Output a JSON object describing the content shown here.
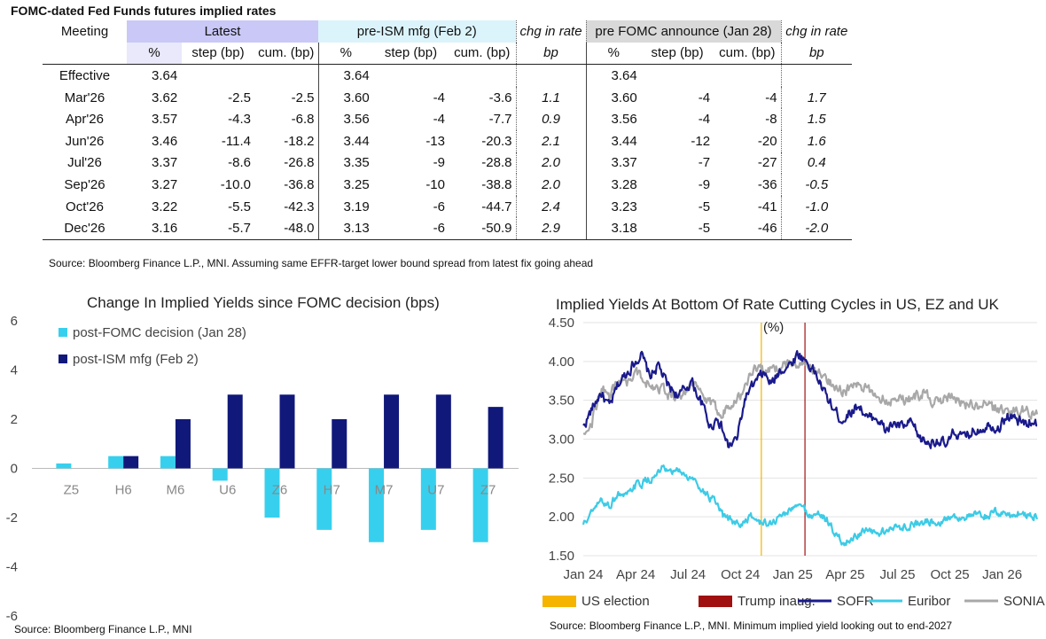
{
  "table": {
    "title": "FOMC-dated Fed Funds futures implied rates",
    "meeting_label": "Meeting",
    "groups": [
      "Latest",
      "pre-ISM mfg (Feb 2)",
      "chg in rate",
      "pre FOMC announce (Jan 28)",
      "chg in rate"
    ],
    "subheaders": [
      "%",
      "step (bp)",
      "cum. (bp)",
      "%",
      "step (bp)",
      "cum. (bp)",
      "bp",
      "%",
      "step (bp)",
      "cum. (bp)",
      "bp"
    ],
    "rows": [
      [
        "Effective",
        "3.64",
        "",
        "",
        "3.64",
        "",
        "",
        "",
        "3.64",
        "",
        "",
        ""
      ],
      [
        "Mar'26",
        "3.62",
        "-2.5",
        "-2.5",
        "3.60",
        "-4",
        "-3.6",
        "1.1",
        "3.60",
        "-4",
        "-4",
        "1.7"
      ],
      [
        "Apr'26",
        "3.57",
        "-4.3",
        "-6.8",
        "3.56",
        "-4",
        "-7.7",
        "0.9",
        "3.56",
        "-4",
        "-8",
        "1.5"
      ],
      [
        "Jun'26",
        "3.46",
        "-11.4",
        "-18.2",
        "3.44",
        "-13",
        "-20.3",
        "2.1",
        "3.44",
        "-12",
        "-20",
        "1.6"
      ],
      [
        "Jul'26",
        "3.37",
        "-8.6",
        "-26.8",
        "3.35",
        "-9",
        "-28.8",
        "2.0",
        "3.37",
        "-7",
        "-27",
        "0.4"
      ],
      [
        "Sep'26",
        "3.27",
        "-10.0",
        "-36.8",
        "3.25",
        "-10",
        "-38.8",
        "2.0",
        "3.28",
        "-9",
        "-36",
        "-0.5"
      ],
      [
        "Oct'26",
        "3.22",
        "-5.5",
        "-42.3",
        "3.19",
        "-6",
        "-44.7",
        "2.4",
        "3.23",
        "-5",
        "-41",
        "-1.0"
      ],
      [
        "Dec'26",
        "3.16",
        "-5.7",
        "-48.0",
        "3.13",
        "-6",
        "-50.9",
        "2.9",
        "3.18",
        "-5",
        "-46",
        "-2.0"
      ]
    ],
    "source": "Source: Bloomberg Finance L.P., MNI. Assuming same  EFFR-target lower bound spread from latest fix going ahead"
  },
  "chart_data": [
    {
      "type": "bar",
      "title": "Change In Implied Yields since FOMC decision (bps)",
      "categories": [
        "Z5",
        "H6",
        "M6",
        "U6",
        "Z6",
        "H7",
        "M7",
        "U7",
        "Z7"
      ],
      "series": [
        {
          "name": "post-FOMC decision (Jan 28)",
          "color": "#36d0ee",
          "values": [
            0.2,
            0.5,
            0.5,
            -0.5,
            -2,
            -2.5,
            -3,
            -2.5,
            -3
          ]
        },
        {
          "name": "post-ISM mfg (Feb 2)",
          "color": "#10187a",
          "values": [
            0,
            0.5,
            2,
            3,
            3,
            2,
            3,
            3,
            2.5
          ]
        }
      ],
      "ylim": [
        -6,
        6
      ],
      "yticks": [
        "6",
        "4",
        "2",
        "0",
        "-2",
        "-4",
        "-6"
      ],
      "source": "Source: Bloomberg Finance L.P., MNI"
    },
    {
      "type": "line",
      "title": "Implied Yields At Bottom Of Rate Cutting Cycles in US, EZ and UK",
      "ylabel": "(%)",
      "ylim": [
        1.5,
        4.5
      ],
      "yticks": [
        "4.50",
        "4.00",
        "3.50",
        "3.00",
        "2.50",
        "2.00",
        "1.50"
      ],
      "xticks": [
        "Jan 24",
        "Apr 24",
        "Jul 24",
        "Oct 24",
        "Jan 25",
        "Apr 25",
        "Jul 25",
        "Oct 25",
        "Jan 26"
      ],
      "x_range_months": [
        0,
        26
      ],
      "events": [
        {
          "name": "US election",
          "month": 10.2,
          "color": "#f5b400"
        },
        {
          "name": "Trump inaug.",
          "month": 12.7,
          "color": "#a01010"
        }
      ],
      "series": [
        {
          "name": "SOFR",
          "color": "#1a1a8c",
          "anchors": [
            [
              0,
              3.15
            ],
            [
              0.3,
              3.3
            ],
            [
              1,
              3.6
            ],
            [
              1.5,
              3.4
            ],
            [
              2,
              3.7
            ],
            [
              2.8,
              3.95
            ],
            [
              3.3,
              4.1
            ],
            [
              3.8,
              3.8
            ],
            [
              4.3,
              3.95
            ],
            [
              4.8,
              3.7
            ],
            [
              5.5,
              3.55
            ],
            [
              6.2,
              3.75
            ],
            [
              6.8,
              3.45
            ],
            [
              7.3,
              3.15
            ],
            [
              7.7,
              3.3
            ],
            [
              8.3,
              2.9
            ],
            [
              8.8,
              3.0
            ],
            [
              9.3,
              3.55
            ],
            [
              9.8,
              3.7
            ],
            [
              10.3,
              3.85
            ],
            [
              10.8,
              3.7
            ],
            [
              11.3,
              3.9
            ],
            [
              11.8,
              3.95
            ],
            [
              12.3,
              4.1
            ],
            [
              12.8,
              4.0
            ],
            [
              13.3,
              3.85
            ],
            [
              13.8,
              3.6
            ],
            [
              14.3,
              3.4
            ],
            [
              14.8,
              3.25
            ],
            [
              15.3,
              3.35
            ],
            [
              15.8,
              3.45
            ],
            [
              16.3,
              3.25
            ],
            [
              16.8,
              3.3
            ],
            [
              17.3,
              3.1
            ],
            [
              17.8,
              3.2
            ],
            [
              18.3,
              3.15
            ],
            [
              18.8,
              3.2
            ],
            [
              19.3,
              3.0
            ],
            [
              19.8,
              2.95
            ],
            [
              20.3,
              3.0
            ],
            [
              20.8,
              2.9
            ],
            [
              21.3,
              3.1
            ],
            [
              21.8,
              3.0
            ],
            [
              22.3,
              3.1
            ],
            [
              22.8,
              3.15
            ],
            [
              23.3,
              3.2
            ],
            [
              23.8,
              3.15
            ],
            [
              24.3,
              3.3
            ],
            [
              24.8,
              3.25
            ],
            [
              25.3,
              3.2
            ],
            [
              25.8,
              3.25
            ],
            [
              26,
              3.2
            ]
          ]
        },
        {
          "name": "Euribor",
          "color": "#3dcbe6",
          "anchors": [
            [
              0,
              1.9
            ],
            [
              0.5,
              2.05
            ],
            [
              1,
              2.2
            ],
            [
              1.5,
              2.15
            ],
            [
              2,
              2.3
            ],
            [
              2.5,
              2.25
            ],
            [
              3,
              2.4
            ],
            [
              3.5,
              2.45
            ],
            [
              4,
              2.5
            ],
            [
              4.5,
              2.6
            ],
            [
              5,
              2.55
            ],
            [
              5.5,
              2.6
            ],
            [
              6,
              2.5
            ],
            [
              6.5,
              2.45
            ],
            [
              7,
              2.3
            ],
            [
              7.5,
              2.2
            ],
            [
              8,
              2.0
            ],
            [
              8.5,
              1.95
            ],
            [
              9,
              1.9
            ],
            [
              9.5,
              2.0
            ],
            [
              10,
              1.95
            ],
            [
              10.5,
              1.9
            ],
            [
              11,
              1.95
            ],
            [
              11.5,
              2.05
            ],
            [
              12,
              2.1
            ],
            [
              12.5,
              2.15
            ],
            [
              13,
              2.0
            ],
            [
              13.5,
              2.05
            ],
            [
              14,
              1.95
            ],
            [
              14.5,
              1.75
            ],
            [
              15,
              1.65
            ],
            [
              15.5,
              1.75
            ],
            [
              16,
              1.8
            ],
            [
              16.5,
              1.8
            ],
            [
              17,
              1.78
            ],
            [
              17.5,
              1.85
            ],
            [
              18,
              1.85
            ],
            [
              18.5,
              1.9
            ],
            [
              19,
              1.9
            ],
            [
              19.5,
              1.95
            ],
            [
              20,
              1.95
            ],
            [
              20.5,
              1.95
            ],
            [
              21,
              2.0
            ],
            [
              21.5,
              2.0
            ],
            [
              22,
              2.0
            ],
            [
              22.5,
              2.02
            ],
            [
              23,
              2.0
            ],
            [
              23.5,
              2.05
            ],
            [
              24,
              2.05
            ],
            [
              24.5,
              2.02
            ],
            [
              25,
              2.05
            ],
            [
              25.5,
              2.03
            ],
            [
              26,
              2.02
            ]
          ]
        },
        {
          "name": "SONIA",
          "color": "#a8a8a8",
          "anchors": [
            [
              0,
              3.1
            ],
            [
              0.5,
              3.25
            ],
            [
              1,
              3.65
            ],
            [
              1.5,
              3.55
            ],
            [
              2,
              3.75
            ],
            [
              2.5,
              3.7
            ],
            [
              3,
              3.85
            ],
            [
              3.5,
              3.75
            ],
            [
              4,
              3.7
            ],
            [
              4.5,
              3.65
            ],
            [
              5,
              3.55
            ],
            [
              5.5,
              3.55
            ],
            [
              6,
              3.7
            ],
            [
              6.5,
              3.65
            ],
            [
              7,
              3.5
            ],
            [
              7.5,
              3.4
            ],
            [
              8,
              3.35
            ],
            [
              8.5,
              3.5
            ],
            [
              9,
              3.55
            ],
            [
              9.5,
              3.8
            ],
            [
              10,
              3.95
            ],
            [
              10.5,
              3.85
            ],
            [
              11,
              3.9
            ],
            [
              11.5,
              3.95
            ],
            [
              12,
              4.0
            ],
            [
              12.5,
              3.95
            ],
            [
              13,
              3.9
            ],
            [
              13.5,
              3.85
            ],
            [
              14,
              3.75
            ],
            [
              14.5,
              3.7
            ],
            [
              15,
              3.6
            ],
            [
              15.5,
              3.7
            ],
            [
              16,
              3.65
            ],
            [
              16.5,
              3.6
            ],
            [
              17,
              3.55
            ],
            [
              17.5,
              3.5
            ],
            [
              18,
              3.55
            ],
            [
              18.5,
              3.5
            ],
            [
              19,
              3.55
            ],
            [
              19.5,
              3.6
            ],
            [
              20,
              3.5
            ],
            [
              20.5,
              3.45
            ],
            [
              21,
              3.55
            ],
            [
              21.5,
              3.5
            ],
            [
              22,
              3.45
            ],
            [
              22.5,
              3.4
            ],
            [
              23,
              3.45
            ],
            [
              23.5,
              3.38
            ],
            [
              24,
              3.4
            ],
            [
              24.5,
              3.35
            ],
            [
              25,
              3.38
            ],
            [
              25.5,
              3.35
            ],
            [
              26,
              3.38
            ]
          ]
        }
      ],
      "legend": [
        "US election",
        "Trump inaug.",
        "SOFR",
        "Euribor",
        "SONIA"
      ],
      "source": "Source: Bloomberg Finance L.P., MNI. Minimum implied yield looking out to end-2027"
    }
  ]
}
